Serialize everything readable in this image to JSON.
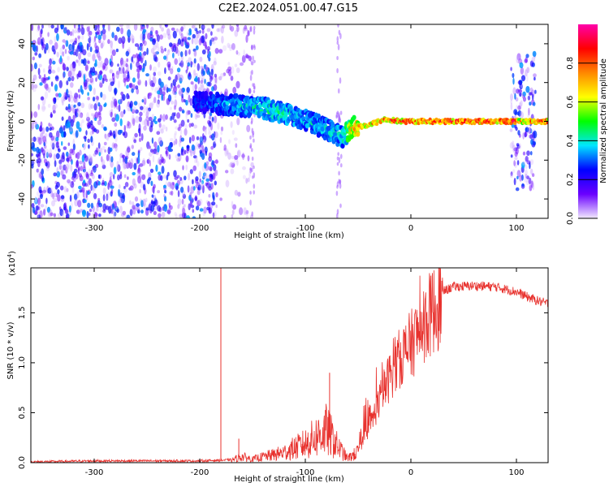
{
  "figure": {
    "title": "C2E2.2024.051.00.47.G15"
  },
  "chart_data": [
    {
      "type": "heatmap",
      "xlabel": "Height of straight line (km)",
      "ylabel": "Frequency (Hz)",
      "xlim": [
        -360,
        130
      ],
      "ylim": [
        -50,
        50
      ],
      "xticks": [
        -300,
        -200,
        -100,
        0,
        100
      ],
      "yticks": [
        -40,
        -20,
        0,
        20,
        40
      ],
      "colorbar": {
        "label": "Normalized spectral amplitude",
        "range": [
          0,
          1
        ],
        "ticks": [
          "0.0",
          "0.2",
          "0.4",
          "0.6",
          "0.8"
        ],
        "colors": [
          "#f2eaff",
          "#6a00ff",
          "#0000ff",
          "#00e5ff",
          "#00ff00",
          "#ffff00",
          "#ff8800",
          "#ff0000",
          "#ff00aa"
        ]
      },
      "grid": false,
      "regions": [
        {
          "kind": "noise",
          "x": [
            -360,
            -185
          ],
          "y": [
            -50,
            50
          ],
          "level": 0.3
        },
        {
          "kind": "noise",
          "x": [
            -185,
            -150
          ],
          "y": [
            -50,
            50
          ],
          "level": 0.12
        },
        {
          "kind": "noise",
          "x": [
            95,
            118
          ],
          "y": [
            -35,
            35
          ],
          "level": 0.3
        }
      ],
      "signal_track": [
        {
          "x": -205,
          "f": 10,
          "amp": 0.28
        },
        {
          "x": -180,
          "f": 9,
          "amp": 0.35
        },
        {
          "x": -160,
          "f": 8,
          "amp": 0.4
        },
        {
          "x": -140,
          "f": 7,
          "amp": 0.45
        },
        {
          "x": -120,
          "f": 4,
          "amp": 0.45
        },
        {
          "x": -100,
          "f": 1,
          "amp": 0.4
        },
        {
          "x": -80,
          "f": -4,
          "amp": 0.4
        },
        {
          "x": -65,
          "f": -8,
          "amp": 0.45
        },
        {
          "x": -55,
          "f": -3,
          "amp": 0.75
        },
        {
          "x": -40,
          "f": -2,
          "amp": 0.8
        },
        {
          "x": -25,
          "f": 1,
          "amp": 0.85
        },
        {
          "x": -10,
          "f": 0,
          "amp": 0.9
        },
        {
          "x": 10,
          "f": 0,
          "amp": 0.9
        },
        {
          "x": 50,
          "f": 0,
          "amp": 0.92
        },
        {
          "x": 95,
          "f": 0,
          "amp": 0.92
        },
        {
          "x": 105,
          "f": 0,
          "amp": 0.75
        },
        {
          "x": 130,
          "f": 0,
          "amp": 0.9
        }
      ]
    },
    {
      "type": "line",
      "xlabel": "Height of straight line (km)",
      "ylabel": "SNR (10 * v/v)",
      "y_multiplier_label": "(x10",
      "y_multiplier_exponent": "4",
      "y_multiplier_close": ")",
      "xlim": [
        -360,
        130
      ],
      "ylim": [
        0,
        1.95
      ],
      "xticks": [
        -300,
        -200,
        -100,
        0,
        100
      ],
      "yticks": [
        "0.0",
        "0.5",
        "1.0",
        "1.5"
      ],
      "grid": false,
      "series": [
        {
          "color": "#e8322e",
          "x": [
            -360,
            -300,
            -250,
            -200,
            -170,
            -160,
            -150,
            -140,
            -130,
            -120,
            -110,
            -100,
            -90,
            -80,
            -75,
            -70,
            -60,
            -50,
            -40,
            -30,
            -20,
            -10,
            0,
            10,
            20,
            30,
            40,
            60,
            80,
            100,
            110,
            120,
            130
          ],
          "y": [
            0.01,
            0.02,
            0.02,
            0.02,
            0.03,
            0.07,
            0.04,
            0.07,
            0.09,
            0.12,
            0.17,
            0.22,
            0.3,
            0.38,
            0.3,
            0.2,
            0.05,
            0.12,
            0.35,
            0.65,
            0.92,
            1.12,
            1.25,
            1.42,
            1.6,
            1.72,
            1.77,
            1.78,
            1.77,
            1.72,
            1.67,
            1.63,
            1.6
          ]
        }
      ],
      "spikes": [
        {
          "x": -180,
          "y": 1.95
        },
        {
          "x": -77,
          "y": 0.9
        },
        {
          "x": -163,
          "y": 0.24
        }
      ]
    }
  ]
}
